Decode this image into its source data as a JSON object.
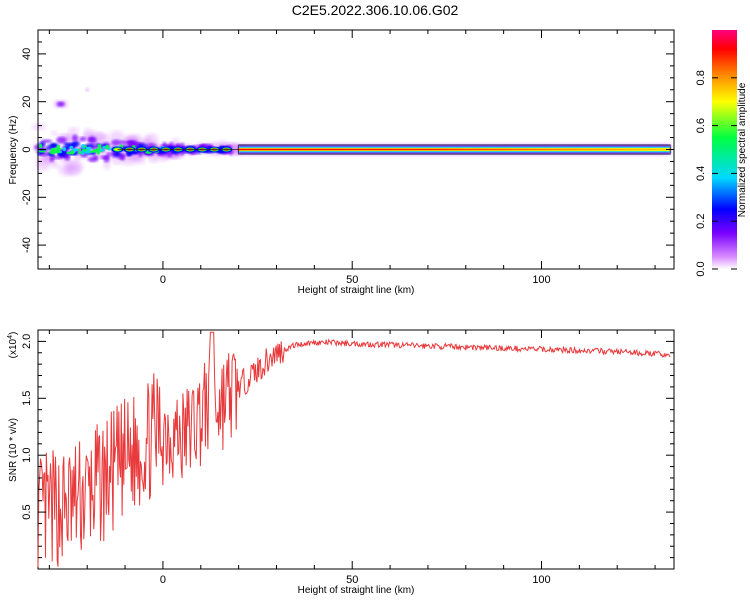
{
  "title": "C2E5.2022.306.10.06.G02",
  "chart_data": [
    {
      "type": "heatmap",
      "xlabel": "Height of straight line (km)",
      "ylabel": "Frequency (Hz)",
      "xlim": [
        -33,
        135
      ],
      "ylim": [
        -50,
        50
      ],
      "x_ticks": [
        0,
        50,
        100
      ],
      "y_ticks": [
        -40,
        -20,
        0,
        20,
        40
      ],
      "colorbar": {
        "label": "Normalized spectral amplitude",
        "range": [
          0,
          1
        ],
        "ticks": [
          "0.0",
          "0.2",
          "0.4",
          "0.6",
          "0.8"
        ],
        "colors": [
          "#ffffff",
          "#d98cff",
          "#7a00ff",
          "#0000ff",
          "#00d8ff",
          "#00ff40",
          "#ffff00",
          "#ff8000",
          "#ff0000",
          "#ff0080"
        ]
      },
      "features": [
        {
          "desc": "main ridge",
          "freq": 0,
          "x_range": [
            -33,
            134
          ]
        },
        {
          "desc": "side blob",
          "freq": 19,
          "x_range": [
            -30,
            -25
          ]
        }
      ]
    },
    {
      "type": "line",
      "xlabel": "Height of straight line (km)",
      "ylabel": "SNR (10 * v/v)",
      "scale_label": "(x10",
      "scale_exp": "4",
      "scale_close": ")",
      "xlim": [
        -33,
        135
      ],
      "ylim": [
        0,
        2.1
      ],
      "x_ticks": [
        0,
        50,
        100
      ],
      "y_ticks": [
        0.5,
        1.0,
        1.5,
        2.0
      ],
      "y_tick_labels": [
        "0.5",
        "1.0",
        "1.5",
        "2.0"
      ],
      "series": [
        {
          "color": "#e8393b",
          "x": [
            -33,
            -30,
            -25,
            -20,
            -15,
            -10,
            -5,
            0,
            5,
            10,
            13,
            15,
            20,
            25,
            30,
            35,
            40,
            45,
            50,
            60,
            70,
            80,
            90,
            100,
            110,
            120,
            125,
            130,
            134
          ],
          "y": [
            0.45,
            0.5,
            0.55,
            0.65,
            0.8,
            0.95,
            1.1,
            1.25,
            1.15,
            1.35,
            1.5,
            1.45,
            1.6,
            1.75,
            1.9,
            1.97,
            1.99,
            1.99,
            1.98,
            1.97,
            1.96,
            1.95,
            1.94,
            1.93,
            1.92,
            1.91,
            1.9,
            1.89,
            1.88
          ]
        }
      ]
    }
  ]
}
